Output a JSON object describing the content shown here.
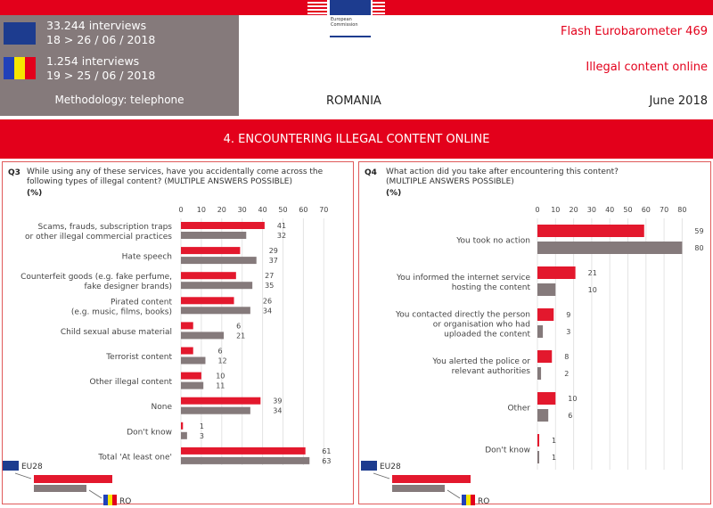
{
  "header": {
    "ec_logo_text": [
      "European",
      "Commission"
    ],
    "eu_interviews": "33.244 interviews",
    "eu_dates": "18 > 26 / 06 / 2018",
    "ro_interviews": "1.254 interviews",
    "ro_dates": "19 > 25 / 06 / 2018",
    "methodology": "Methodology: telephone",
    "country": "ROMANIA",
    "survey": "Flash Eurobarometer 469",
    "topic": "Illegal content online",
    "date": "June 2018"
  },
  "banner": "4. ENCOUNTERING ILLEGAL CONTENT ONLINE",
  "colors": {
    "eu28": "#e3182d",
    "ro": "#857a7b",
    "accent": "#e3001b",
    "grid": "#e4e4e4"
  },
  "q3": {
    "number": "Q3",
    "question": [
      "While using any of these services, have you accidentally come across the",
      "following types of illegal content? (MULTIPLE ANSWERS POSSIBLE)"
    ],
    "unit": "(%)"
  },
  "q4": {
    "number": "Q4",
    "question": [
      "What action did you take after encountering this content?",
      "(MULTIPLE ANSWERS POSSIBLE)"
    ],
    "unit": "(%)"
  },
  "legend": {
    "eu28": "EU28",
    "ro": "RO"
  },
  "chart_data": [
    {
      "type": "bar",
      "orientation": "horizontal",
      "xlim": [
        0,
        70
      ],
      "ticks": [
        0,
        10,
        20,
        30,
        40,
        50,
        60,
        70
      ],
      "grid": true,
      "categories": [
        [
          "Scams, frauds, subscription traps",
          "or other illegal commercial practices"
        ],
        [
          "Hate speech"
        ],
        [
          "Counterfeit goods (e.g. fake perfume,",
          "fake designer brands)"
        ],
        [
          "Pirated content",
          "(e.g. music, films, books)"
        ],
        [
          "Child sexual abuse material"
        ],
        [
          "Terrorist content"
        ],
        [
          "Other illegal content"
        ],
        [
          "None"
        ],
        [
          "Don't know"
        ],
        [
          "Total 'At least one'"
        ]
      ],
      "series": [
        {
          "name": "EU28",
          "values": [
            41,
            29,
            27,
            26,
            6,
            6,
            10,
            39,
            1,
            61
          ]
        },
        {
          "name": "RO",
          "values": [
            32,
            37,
            35,
            34,
            21,
            12,
            11,
            34,
            3,
            63
          ]
        }
      ]
    },
    {
      "type": "bar",
      "orientation": "horizontal",
      "xlim": [
        0,
        80
      ],
      "ticks": [
        0,
        10,
        20,
        30,
        40,
        50,
        60,
        70,
        80
      ],
      "grid": true,
      "categories": [
        [
          "You took no action"
        ],
        [
          "You informed the internet service",
          "hosting the content"
        ],
        [
          "You contacted directly the person",
          "or organisation who had",
          "uploaded the content"
        ],
        [
          "You alerted the police or",
          "relevant authorities"
        ],
        [
          "Other"
        ],
        [
          "Don't know"
        ]
      ],
      "series": [
        {
          "name": "EU28",
          "values": [
            59,
            21,
            9,
            8,
            10,
            1
          ]
        },
        {
          "name": "RO",
          "values": [
            80,
            10,
            3,
            2,
            6,
            1
          ]
        }
      ]
    }
  ]
}
